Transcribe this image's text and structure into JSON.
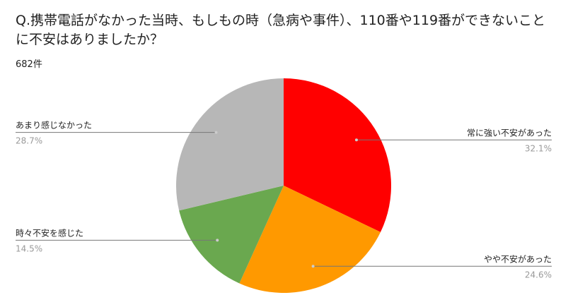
{
  "chart_data": {
    "type": "pie",
    "title": "Q.携帯電話がなかった当時、もしもの時（急病や事件）、110番や119番ができないことに不安はありましたか？",
    "subtitle": "682件",
    "categories": [
      "常に強い不安があった",
      "やや不安があった",
      "時々不安を感じた",
      "あまり感じなかった"
    ],
    "values": [
      32.1,
      24.6,
      14.5,
      28.7
    ],
    "value_labels": [
      "32.1%",
      "24.6%",
      "14.5%",
      "28.7%"
    ],
    "colors": [
      "#ff0000",
      "#ff9900",
      "#6aa84f",
      "#b7b7b7"
    ]
  }
}
